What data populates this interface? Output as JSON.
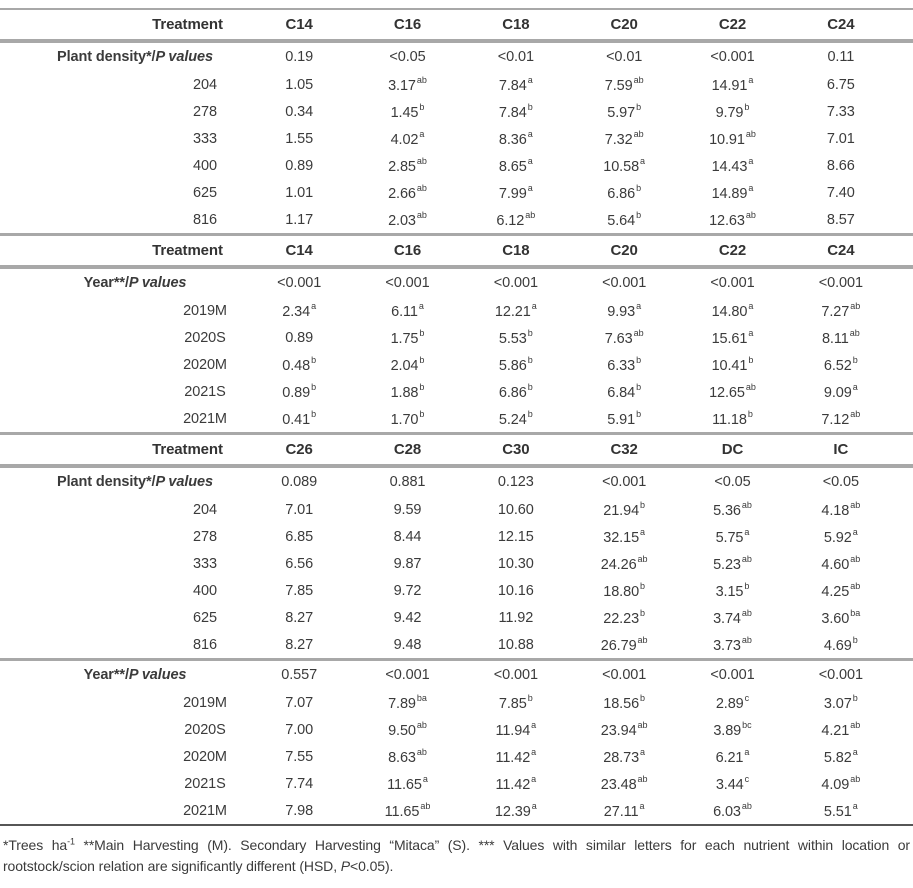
{
  "colors": {
    "rule": "#a8a8a8",
    "rule_dark": "#565656",
    "text": "#3b3b3b",
    "background": "#ffffff"
  },
  "table": {
    "sections": [
      {
        "name": "section-c14-c24-plant-density",
        "header": {
          "treatment_label": "Treatment",
          "columns": [
            "C14",
            "C16",
            "C18",
            "C20",
            "C22",
            "C24"
          ]
        },
        "rows": [
          {
            "p": true,
            "label": "Plant density*/",
            "label_italic": "P values",
            "cells": [
              [
                "0.19",
                ""
              ],
              [
                "<0.05",
                ""
              ],
              [
                "<0.01",
                ""
              ],
              [
                "<0.01",
                ""
              ],
              [
                "<0.001",
                ""
              ],
              [
                "0.11",
                ""
              ]
            ]
          },
          {
            "label": "204",
            "cells": [
              [
                "1.05",
                ""
              ],
              [
                "3.17",
                "ab"
              ],
              [
                "7.84",
                "a"
              ],
              [
                "7.59",
                "ab"
              ],
              [
                "14.91",
                "a"
              ],
              [
                "6.75",
                ""
              ]
            ]
          },
          {
            "label": "278",
            "cells": [
              [
                "0.34",
                ""
              ],
              [
                "1.45",
                "b"
              ],
              [
                "7.84",
                "b"
              ],
              [
                "5.97",
                "b"
              ],
              [
                "9.79",
                "b"
              ],
              [
                "7.33",
                ""
              ]
            ]
          },
          {
            "label": "333",
            "cells": [
              [
                "1.55",
                ""
              ],
              [
                "4.02",
                "a"
              ],
              [
                "8.36",
                "a"
              ],
              [
                "7.32",
                "ab"
              ],
              [
                "10.91",
                "ab"
              ],
              [
                "7.01",
                ""
              ]
            ]
          },
          {
            "label": "400",
            "cells": [
              [
                "0.89",
                ""
              ],
              [
                "2.85",
                "ab"
              ],
              [
                "8.65",
                "a"
              ],
              [
                "10.58",
                "a"
              ],
              [
                "14.43",
                "a"
              ],
              [
                "8.66",
                ""
              ]
            ]
          },
          {
            "label": "625",
            "cells": [
              [
                "1.01",
                ""
              ],
              [
                "2.66",
                "ab"
              ],
              [
                "7.99",
                "a"
              ],
              [
                "6.86",
                "b"
              ],
              [
                "14.89",
                "a"
              ],
              [
                "7.40",
                ""
              ]
            ]
          },
          {
            "label": "816",
            "cells": [
              [
                "1.17",
                ""
              ],
              [
                "2.03",
                "ab"
              ],
              [
                "6.12",
                "ab"
              ],
              [
                "5.64",
                "b"
              ],
              [
                "12.63",
                "ab"
              ],
              [
                "8.57",
                ""
              ]
            ]
          }
        ]
      },
      {
        "name": "section-c14-c24-year",
        "header": {
          "treatment_label": "Treatment",
          "columns": [
            "C14",
            "C16",
            "C18",
            "C20",
            "C22",
            "C24"
          ]
        },
        "rows": [
          {
            "p": true,
            "label": "Year**/",
            "label_italic": "P values",
            "cells": [
              [
                "<0.001",
                ""
              ],
              [
                "<0.001",
                ""
              ],
              [
                "<0.001",
                ""
              ],
              [
                "<0.001",
                ""
              ],
              [
                "<0.001",
                ""
              ],
              [
                "<0.001",
                ""
              ]
            ]
          },
          {
            "label": "2019M",
            "cells": [
              [
                "2.34",
                "a"
              ],
              [
                "6.11",
                "a"
              ],
              [
                "12.21",
                "a"
              ],
              [
                "9.93",
                "a"
              ],
              [
                "14.80",
                "a"
              ],
              [
                "7.27",
                "ab"
              ]
            ]
          },
          {
            "label": "2020S",
            "cells": [
              [
                "0.89",
                ""
              ],
              [
                "1.75",
                "b"
              ],
              [
                "5.53",
                "b"
              ],
              [
                "7.63",
                "ab"
              ],
              [
                "15.61",
                "a"
              ],
              [
                "8.11",
                "ab"
              ]
            ]
          },
          {
            "label": "2020M",
            "cells": [
              [
                "0.48",
                "b"
              ],
              [
                "2.04",
                "b"
              ],
              [
                "5.86",
                "b"
              ],
              [
                "6.33",
                "b"
              ],
              [
                "10.41",
                "b"
              ],
              [
                "6.52",
                "b"
              ]
            ]
          },
          {
            "label": "2021S",
            "cells": [
              [
                "0.89",
                "b"
              ],
              [
                "1.88",
                "b"
              ],
              [
                "6.86",
                "b"
              ],
              [
                "6.84",
                "b"
              ],
              [
                "12.65",
                "ab"
              ],
              [
                "9.09",
                "a"
              ]
            ]
          },
          {
            "label": "2021M",
            "cells": [
              [
                "0.41",
                "b"
              ],
              [
                "1.70",
                "b"
              ],
              [
                "5.24",
                "b"
              ],
              [
                "5.91",
                "b"
              ],
              [
                "11.18",
                "b"
              ],
              [
                "7.12",
                "ab"
              ]
            ]
          }
        ]
      },
      {
        "name": "section-c26-ic-plant-density",
        "header": {
          "treatment_label": "Treatment",
          "columns": [
            "C26",
            "C28",
            "C30",
            "C32",
            "DC",
            "IC"
          ]
        },
        "rows": [
          {
            "p": true,
            "label": "Plant density*/",
            "label_italic": "P values",
            "cells": [
              [
                "0.089",
                ""
              ],
              [
                "0.881",
                ""
              ],
              [
                "0.123",
                ""
              ],
              [
                "<0.001",
                ""
              ],
              [
                "<0.05",
                ""
              ],
              [
                "<0.05",
                ""
              ]
            ]
          },
          {
            "label": "204",
            "cells": [
              [
                "7.01",
                ""
              ],
              [
                "9.59",
                ""
              ],
              [
                "10.60",
                ""
              ],
              [
                "21.94",
                "b"
              ],
              [
                "5.36",
                "ab"
              ],
              [
                "4.18",
                "ab"
              ]
            ]
          },
          {
            "label": "278",
            "cells": [
              [
                "6.85",
                ""
              ],
              [
                "8.44",
                ""
              ],
              [
                "12.15",
                ""
              ],
              [
                "32.15",
                "a"
              ],
              [
                "5.75",
                "a"
              ],
              [
                "5.92",
                "a"
              ]
            ]
          },
          {
            "label": "333",
            "cells": [
              [
                "6.56",
                ""
              ],
              [
                "9.87",
                ""
              ],
              [
                "10.30",
                ""
              ],
              [
                "24.26",
                "ab"
              ],
              [
                "5.23",
                "ab"
              ],
              [
                "4.60",
                "ab"
              ]
            ]
          },
          {
            "label": "400",
            "cells": [
              [
                "7.85",
                ""
              ],
              [
                "9.72",
                ""
              ],
              [
                "10.16",
                ""
              ],
              [
                "18.80",
                "b"
              ],
              [
                "3.15",
                "b"
              ],
              [
                "4.25",
                "ab"
              ]
            ]
          },
          {
            "label": "625",
            "cells": [
              [
                "8.27",
                ""
              ],
              [
                "9.42",
                ""
              ],
              [
                "11.92",
                ""
              ],
              [
                "22.23",
                "b"
              ],
              [
                "3.74",
                "ab"
              ],
              [
                "3.60",
                "ba"
              ]
            ]
          },
          {
            "label": "816",
            "cells": [
              [
                "8.27",
                ""
              ],
              [
                "9.48",
                ""
              ],
              [
                "10.88",
                ""
              ],
              [
                "26.79",
                "ab"
              ],
              [
                "3.73",
                "ab"
              ],
              [
                "4.69",
                "b"
              ]
            ]
          }
        ]
      },
      {
        "name": "section-c26-ic-year",
        "header": null,
        "rows": [
          {
            "p": true,
            "label": "Year**/",
            "label_italic": "P values",
            "cells": [
              [
                "0.557",
                ""
              ],
              [
                "<0.001",
                ""
              ],
              [
                "<0.001",
                ""
              ],
              [
                "<0.001",
                ""
              ],
              [
                "<0.001",
                ""
              ],
              [
                "<0.001",
                ""
              ]
            ]
          },
          {
            "label": "2019M",
            "cells": [
              [
                "7.07",
                ""
              ],
              [
                "7.89",
                "ba"
              ],
              [
                "7.85",
                "b"
              ],
              [
                "18.56",
                "b"
              ],
              [
                "2.89",
                "c"
              ],
              [
                "3.07",
                "b"
              ]
            ]
          },
          {
            "label": "2020S",
            "cells": [
              [
                "7.00",
                ""
              ],
              [
                "9.50",
                "ab"
              ],
              [
                "11.94",
                "a"
              ],
              [
                "23.94",
                "ab"
              ],
              [
                "3.89",
                "bc"
              ],
              [
                "4.21",
                "ab"
              ]
            ]
          },
          {
            "label": "2020M",
            "cells": [
              [
                "7.55",
                ""
              ],
              [
                "8.63",
                "ab"
              ],
              [
                "11.42",
                "a"
              ],
              [
                "28.73",
                "a"
              ],
              [
                "6.21",
                "a"
              ],
              [
                "5.82",
                "a"
              ]
            ]
          },
          {
            "label": "2021S",
            "cells": [
              [
                "7.74",
                ""
              ],
              [
                "11.65",
                "a"
              ],
              [
                "11.42",
                "a"
              ],
              [
                "23.48",
                "ab"
              ],
              [
                "3.44",
                "c"
              ],
              [
                "4.09",
                "ab"
              ]
            ]
          },
          {
            "label": "2021M",
            "cells": [
              [
                "7.98",
                ""
              ],
              [
                "11.65",
                "ab"
              ],
              [
                "12.39",
                "a"
              ],
              [
                "27.11",
                "a"
              ],
              [
                "6.03",
                "ab"
              ],
              [
                "5.51",
                "a"
              ]
            ]
          }
        ]
      }
    ]
  },
  "footnote": {
    "segments": [
      {
        "t": "*Trees ha"
      },
      {
        "sup": "-1"
      },
      {
        "t": " **Main Harvesting (M). Secondary Harvesting “Mitaca” (S). *** Values with similar letters for each nutrient within location or rootstock/scion relation are significantly different (HSD, "
      },
      {
        "i": "P"
      },
      {
        "t": "<0.05)."
      }
    ]
  }
}
